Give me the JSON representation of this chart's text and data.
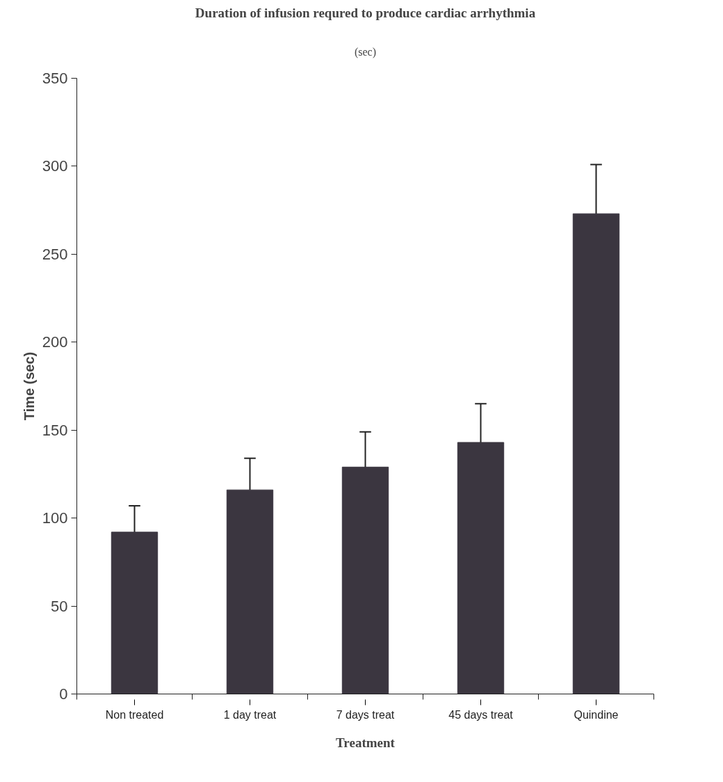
{
  "chart_data": {
    "type": "bar",
    "title": "Duration of infusion requred to produce cardiac arrhythmia",
    "subtitle": "(sec)",
    "xlabel": "Treatment",
    "ylabel": "Time (sec)",
    "categories": [
      "Non treated",
      "1 day treat",
      "7 days treat",
      "45 days treat",
      "Quindine"
    ],
    "values": [
      92,
      116,
      129,
      143,
      273
    ],
    "color": "#3b3640",
    "errors": [
      [
        92,
        107
      ],
      [
        116,
        134
      ],
      [
        129,
        149
      ],
      [
        143,
        165
      ],
      [
        273,
        301
      ]
    ],
    "ylim": [
      0,
      350
    ],
    "yticks": [
      0,
      50,
      100,
      150,
      200,
      250,
      300,
      350
    ],
    "grid": false
  }
}
